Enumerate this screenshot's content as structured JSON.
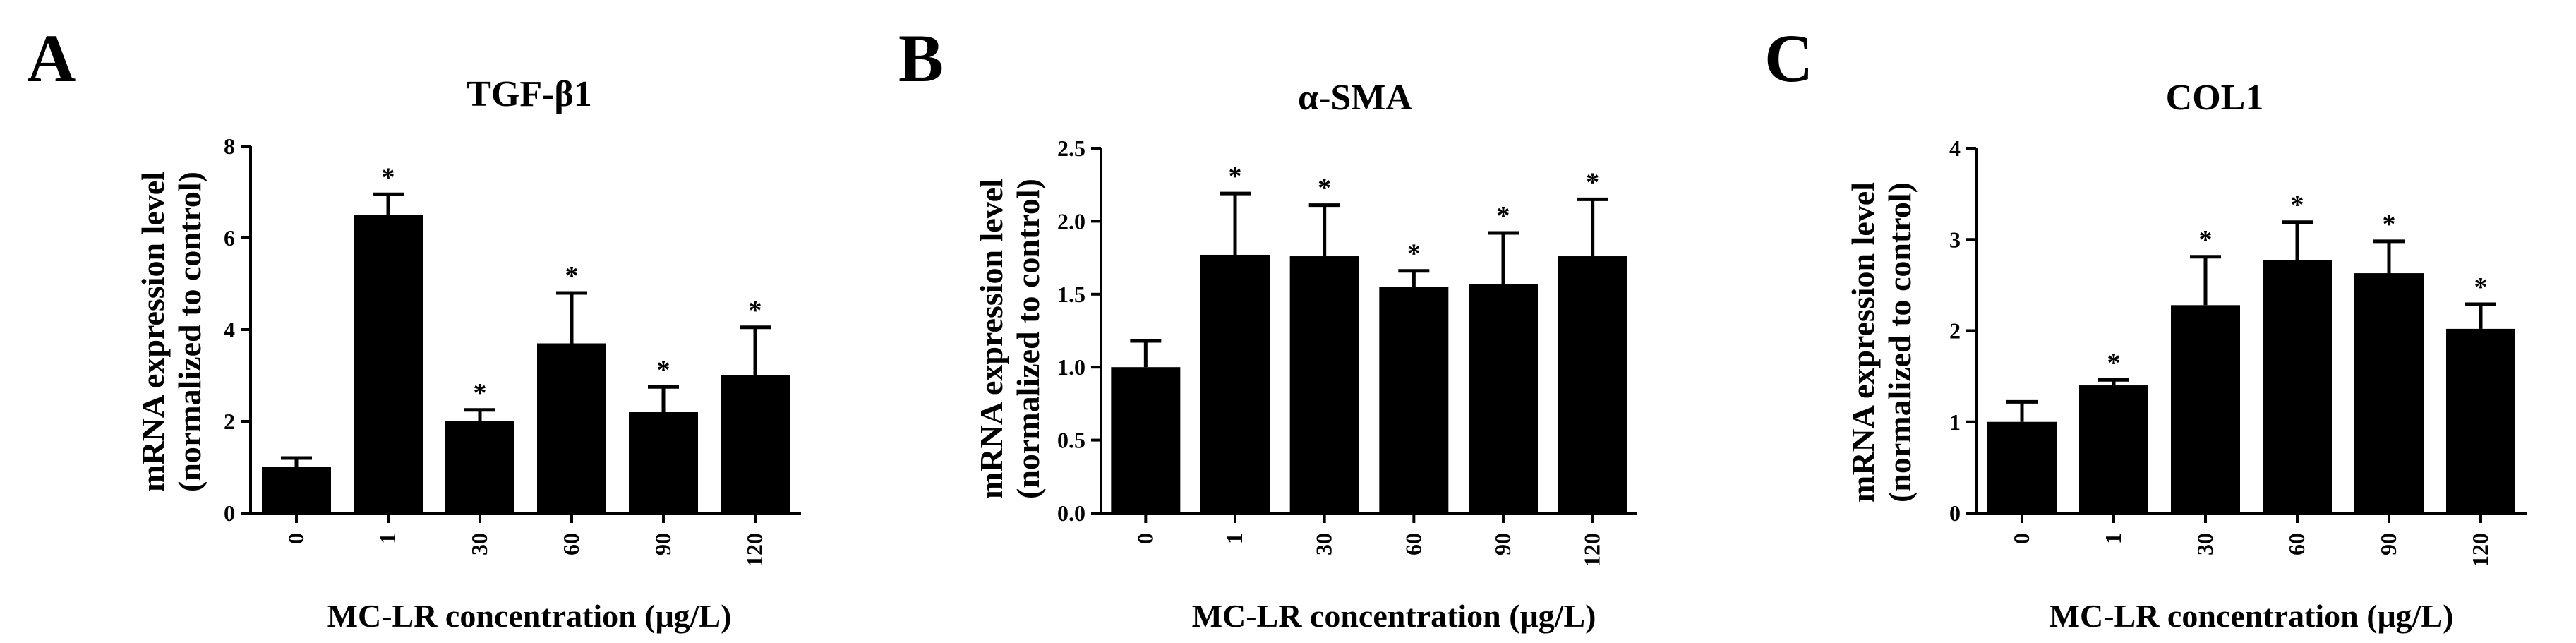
{
  "figure": {
    "colors": {
      "bar": "#000000",
      "background": "#ffffff",
      "axis": "#000000"
    }
  },
  "chart_data": [
    {
      "type": "bar",
      "panel": "A",
      "title": "TGF-β1",
      "ylabel_line1": "mRNA expression level",
      "ylabel_line2": "(normalized to control)",
      "xlabel": "MC-LR concentration (μg/L)",
      "categories": [
        "0",
        "1",
        "30",
        "60",
        "90",
        "120"
      ],
      "values": [
        1.0,
        6.5,
        2.0,
        3.7,
        2.2,
        3.0
      ],
      "errors": [
        0.2,
        0.45,
        0.25,
        1.1,
        0.55,
        1.05
      ],
      "significance": [
        "",
        "*",
        "*",
        "*",
        "*",
        "*"
      ],
      "ylim": [
        0,
        8
      ],
      "yticks": [
        0,
        2,
        4,
        6,
        8
      ],
      "ytick_labels": [
        "0",
        "2",
        "4",
        "6",
        "8"
      ]
    },
    {
      "type": "bar",
      "panel": "B",
      "title": "α-SMA",
      "ylabel_line1": "mRNA expression level",
      "ylabel_line2": "(normalized to control)",
      "xlabel": "MC-LR concentration (μg/L)",
      "categories": [
        "0",
        "1",
        "30",
        "60",
        "90",
        "120"
      ],
      "values": [
        1.0,
        1.77,
        1.76,
        1.55,
        1.57,
        1.76
      ],
      "errors": [
        0.18,
        0.42,
        0.35,
        0.11,
        0.35,
        0.39
      ],
      "significance": [
        "",
        "*",
        "*",
        "*",
        "*",
        "*"
      ],
      "ylim": [
        0,
        2.5
      ],
      "yticks": [
        0,
        0.5,
        1.0,
        1.5,
        2.0,
        2.5
      ],
      "ytick_labels": [
        "0.0",
        "0.5",
        "1.0",
        "1.5",
        "2.0",
        "2.5"
      ]
    },
    {
      "type": "bar",
      "panel": "C",
      "title": "COL1",
      "ylabel_line1": "mRNA expression level",
      "ylabel_line2": "(normalized to control)",
      "xlabel": "MC-LR concentration (μg/L)",
      "categories": [
        "0",
        "1",
        "30",
        "60",
        "90",
        "120"
      ],
      "values": [
        1.0,
        1.4,
        2.28,
        2.77,
        2.63,
        2.02
      ],
      "errors": [
        0.22,
        0.06,
        0.53,
        0.42,
        0.35,
        0.27
      ],
      "significance": [
        "",
        "*",
        "*",
        "*",
        "*",
        "*"
      ],
      "ylim": [
        0,
        4
      ],
      "yticks": [
        0,
        1,
        2,
        3,
        4
      ],
      "ytick_labels": [
        "0",
        "1",
        "2",
        "3",
        "4"
      ]
    }
  ]
}
